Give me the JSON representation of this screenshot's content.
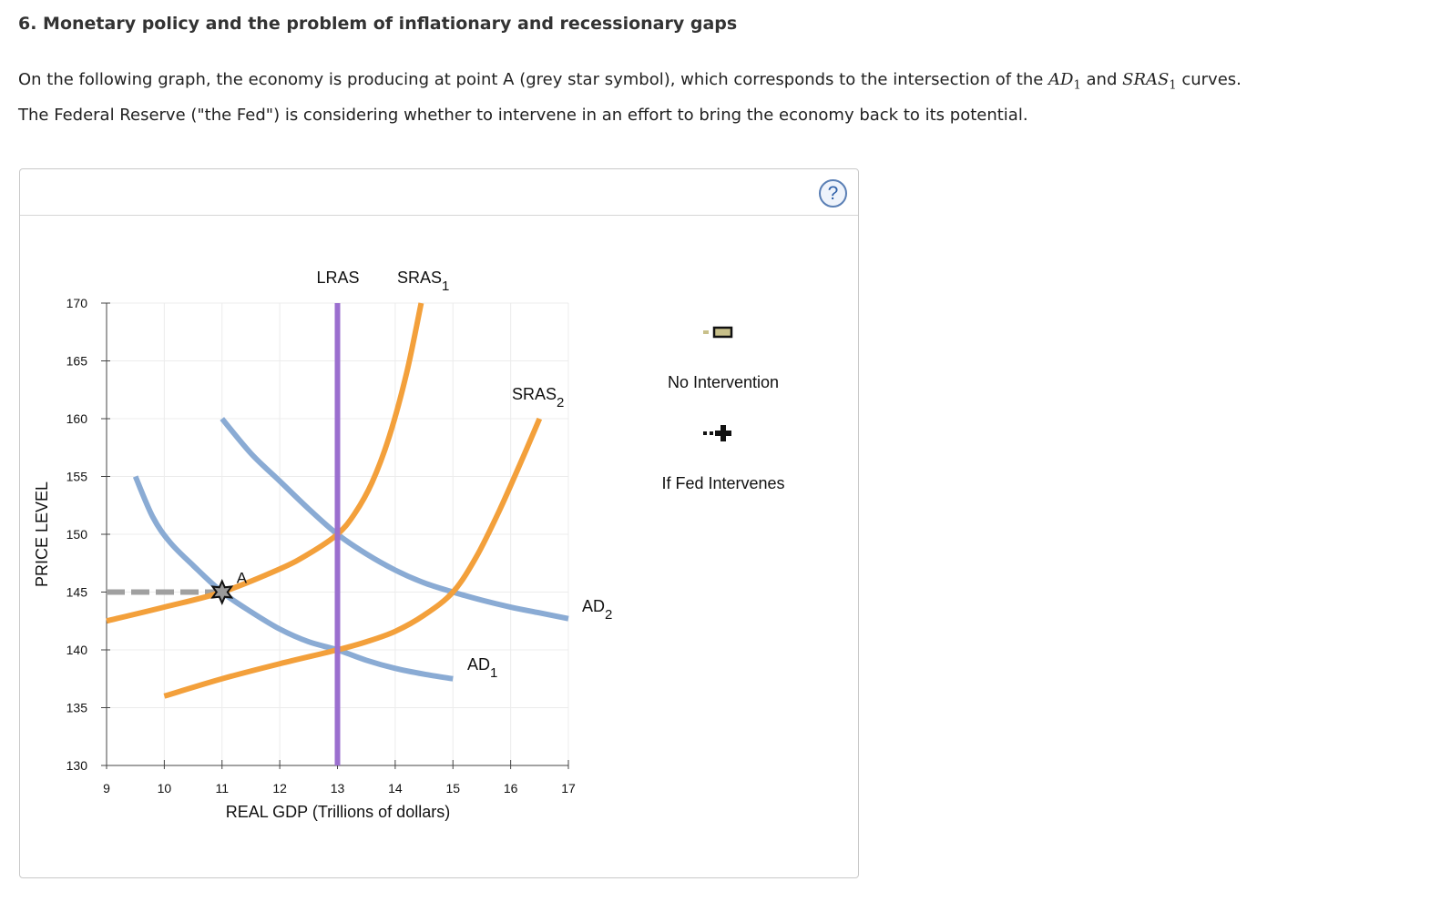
{
  "question": {
    "title": "6. Monetary policy and the problem of inflationary and recessionary gaps",
    "line1_text": "On the following graph, the economy is producing at point A (grey star symbol), which corresponds to the intersection of the",
    "line1_ad": "AD",
    "line1_ad_sub": "1",
    "line1_and": "and",
    "line1_sras": "SRAS",
    "line1_sras_sub": "1",
    "line1_end": "curves.",
    "line2": "The Federal Reserve (\"the Fed\") is considering whether to intervene in an effort to bring the economy back to its potential."
  },
  "help": {
    "label": "?"
  },
  "legend": {
    "no_intervention": {
      "label": "No Intervention",
      "icon": "rectangle-marker-icon",
      "color": "#c8c08a"
    },
    "fed_intervenes": {
      "label": "If Fed Intervenes",
      "icon": "plus-marker-icon",
      "color": "#111111"
    }
  },
  "chart_data": {
    "type": "line",
    "xlabel": "REAL GDP (Trillions of dollars)",
    "ylabel": "PRICE LEVEL",
    "xlim": [
      9,
      17
    ],
    "ylim": [
      130,
      170
    ],
    "x_ticks": [
      9,
      10,
      11,
      12,
      13,
      14,
      15,
      16,
      17
    ],
    "y_ticks": [
      130,
      135,
      140,
      145,
      150,
      155,
      160,
      165,
      170
    ],
    "grid": true,
    "series": [
      {
        "name": "AD1",
        "label": "AD",
        "label_sub": "1",
        "color": "#8aabd4",
        "points": [
          [
            9.5,
            155
          ],
          [
            9.8,
            151.5
          ],
          [
            10.1,
            149.3
          ],
          [
            10.5,
            147.3
          ],
          [
            11,
            145
          ],
          [
            11.5,
            143.3
          ],
          [
            12,
            141.8
          ],
          [
            12.5,
            140.7
          ],
          [
            13,
            140
          ],
          [
            13.5,
            139.1
          ],
          [
            14,
            138.4
          ],
          [
            14.5,
            137.9
          ],
          [
            15,
            137.5
          ]
        ]
      },
      {
        "name": "AD2",
        "label": "AD",
        "label_sub": "2",
        "color": "#8aabd4",
        "points": [
          [
            11,
            160
          ],
          [
            11.5,
            157
          ],
          [
            12,
            154.6
          ],
          [
            12.5,
            152.2
          ],
          [
            13,
            150
          ],
          [
            13.5,
            148.3
          ],
          [
            14,
            146.9
          ],
          [
            14.5,
            145.8
          ],
          [
            15,
            145
          ],
          [
            15.5,
            144.3
          ],
          [
            16,
            143.7
          ],
          [
            16.5,
            143.2
          ],
          [
            17,
            142.7
          ]
        ]
      },
      {
        "name": "SRAS1",
        "label": "SRAS",
        "label_sub": "1",
        "color": "#f3a03b",
        "points": [
          [
            9,
            142.5
          ],
          [
            10,
            143.7
          ],
          [
            11,
            145
          ],
          [
            12,
            147
          ],
          [
            12.5,
            148.3
          ],
          [
            13,
            150
          ],
          [
            13.3,
            151.8
          ],
          [
            13.6,
            154.5
          ],
          [
            13.9,
            158.5
          ],
          [
            14.2,
            164
          ],
          [
            14.45,
            170
          ]
        ]
      },
      {
        "name": "SRAS2",
        "label": "SRAS",
        "label_sub": "2",
        "color": "#f3a03b",
        "points": [
          [
            10,
            136
          ],
          [
            11,
            137.5
          ],
          [
            12,
            138.8
          ],
          [
            13,
            140
          ],
          [
            13.5,
            140.7
          ],
          [
            14,
            141.6
          ],
          [
            14.5,
            143
          ],
          [
            15,
            145
          ],
          [
            15.4,
            148
          ],
          [
            15.8,
            152
          ],
          [
            16.2,
            156.5
          ],
          [
            16.5,
            160
          ]
        ]
      },
      {
        "name": "LRAS",
        "label": "LRAS",
        "label_sub": "",
        "color": "#9b6fcf",
        "points": [
          [
            13,
            130
          ],
          [
            13,
            170
          ]
        ]
      }
    ],
    "point_a": {
      "label": "A",
      "x": 11,
      "y": 145,
      "color": "#9a9a9a"
    },
    "dashed_guide": {
      "from_x": 9,
      "to_x": 11,
      "y": 145,
      "color": "#a0a0a0"
    }
  }
}
